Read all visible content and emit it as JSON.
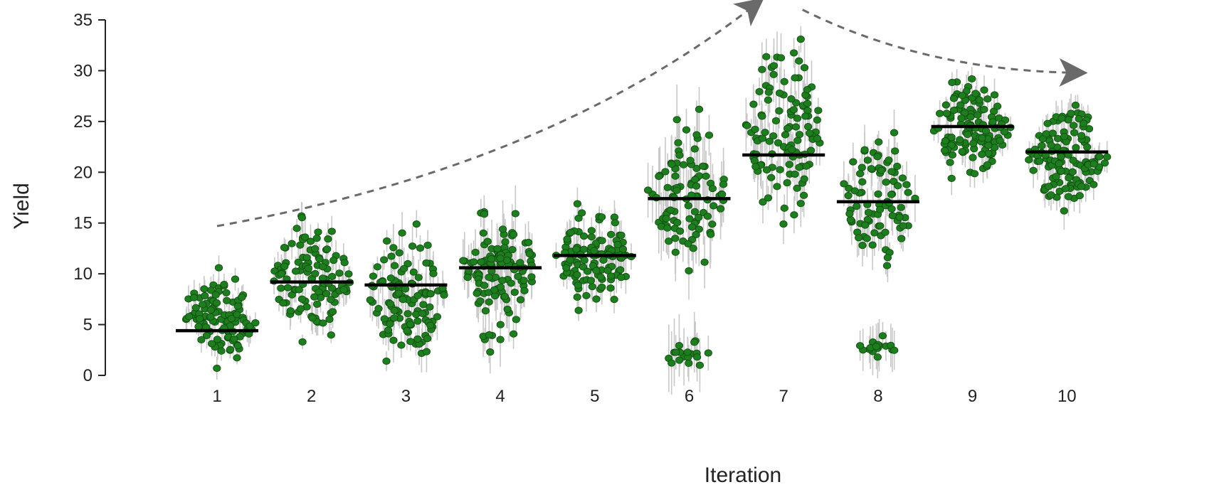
{
  "chart_data": {
    "type": "scatter",
    "title": "",
    "xlabel": "Iteration",
    "ylabel": "Yield",
    "ylim": [
      0,
      35
    ],
    "yticks": [
      0,
      5,
      10,
      15,
      20,
      25,
      30,
      35
    ],
    "categories": [
      "1",
      "2",
      "3",
      "4",
      "5",
      "6",
      "7",
      "8",
      "9",
      "10"
    ],
    "grid": false,
    "legend": "none",
    "colors": {
      "point": "#1e7d1e",
      "point_edge": "#0d4a0d",
      "error_bar": "#c8c8c8",
      "mean_line": "#000000",
      "trend_arrow": "#6a6a6a"
    },
    "means": [
      4.4,
      9.2,
      8.9,
      10.6,
      11.8,
      17.4,
      21.7,
      17.1,
      24.5,
      22.0
    ],
    "series": [
      {
        "groups": [
          {
            "iteration": 1,
            "clusters": [
              {
                "min": 0.7,
                "max": 10.6,
                "count": 110
              }
            ],
            "err": 1.2
          },
          {
            "iteration": 2,
            "clusters": [
              {
                "min": 3.3,
                "max": 15.7,
                "count": 110
              }
            ],
            "err": 1.3
          },
          {
            "iteration": 3,
            "clusters": [
              {
                "min": 1.4,
                "max": 14.9,
                "count": 110
              }
            ],
            "err": 1.8
          },
          {
            "iteration": 4,
            "clusters": [
              {
                "min": 5.5,
                "max": 16.1,
                "count": 110
              },
              {
                "min": 2.3,
                "max": 5.0,
                "count": 8
              }
            ],
            "err": 2.2
          },
          {
            "iteration": 5,
            "clusters": [
              {
                "min": 6.4,
                "max": 16.9,
                "count": 115
              }
            ],
            "err": 1.4
          },
          {
            "iteration": 6,
            "clusters": [
              {
                "min": 10.3,
                "max": 26.2,
                "count": 95
              },
              {
                "min": 1.0,
                "max": 3.4,
                "count": 18
              }
            ],
            "err": 2.8
          },
          {
            "iteration": 7,
            "clusters": [
              {
                "min": 14.9,
                "max": 33.1,
                "count": 115
              }
            ],
            "err": 2.2
          },
          {
            "iteration": 8,
            "clusters": [
              {
                "min": 10.8,
                "max": 23.9,
                "count": 85
              },
              {
                "min": 1.8,
                "max": 3.9,
                "count": 16
              }
            ],
            "err": 2.0
          },
          {
            "iteration": 9,
            "clusters": [
              {
                "min": 19.4,
                "max": 29.2,
                "count": 125
              }
            ],
            "err": 1.3
          },
          {
            "iteration": 10,
            "clusters": [
              {
                "min": 16.2,
                "max": 26.6,
                "count": 125
              }
            ],
            "err": 1.5
          }
        ]
      }
    ],
    "annotations": [
      {
        "type": "dashed-arrow",
        "from": {
          "x": 1,
          "y": 14.7
        },
        "via": {
          "x": 4.5,
          "y": 20.5
        },
        "to": {
          "x": 6.7,
          "y": 36.5
        }
      },
      {
        "type": "dashed-arrow",
        "from": {
          "x": 7.2,
          "y": 36.0
        },
        "via": {
          "x": 8.5,
          "y": 30.0
        },
        "to": {
          "x": 10.1,
          "y": 29.8
        }
      }
    ]
  }
}
